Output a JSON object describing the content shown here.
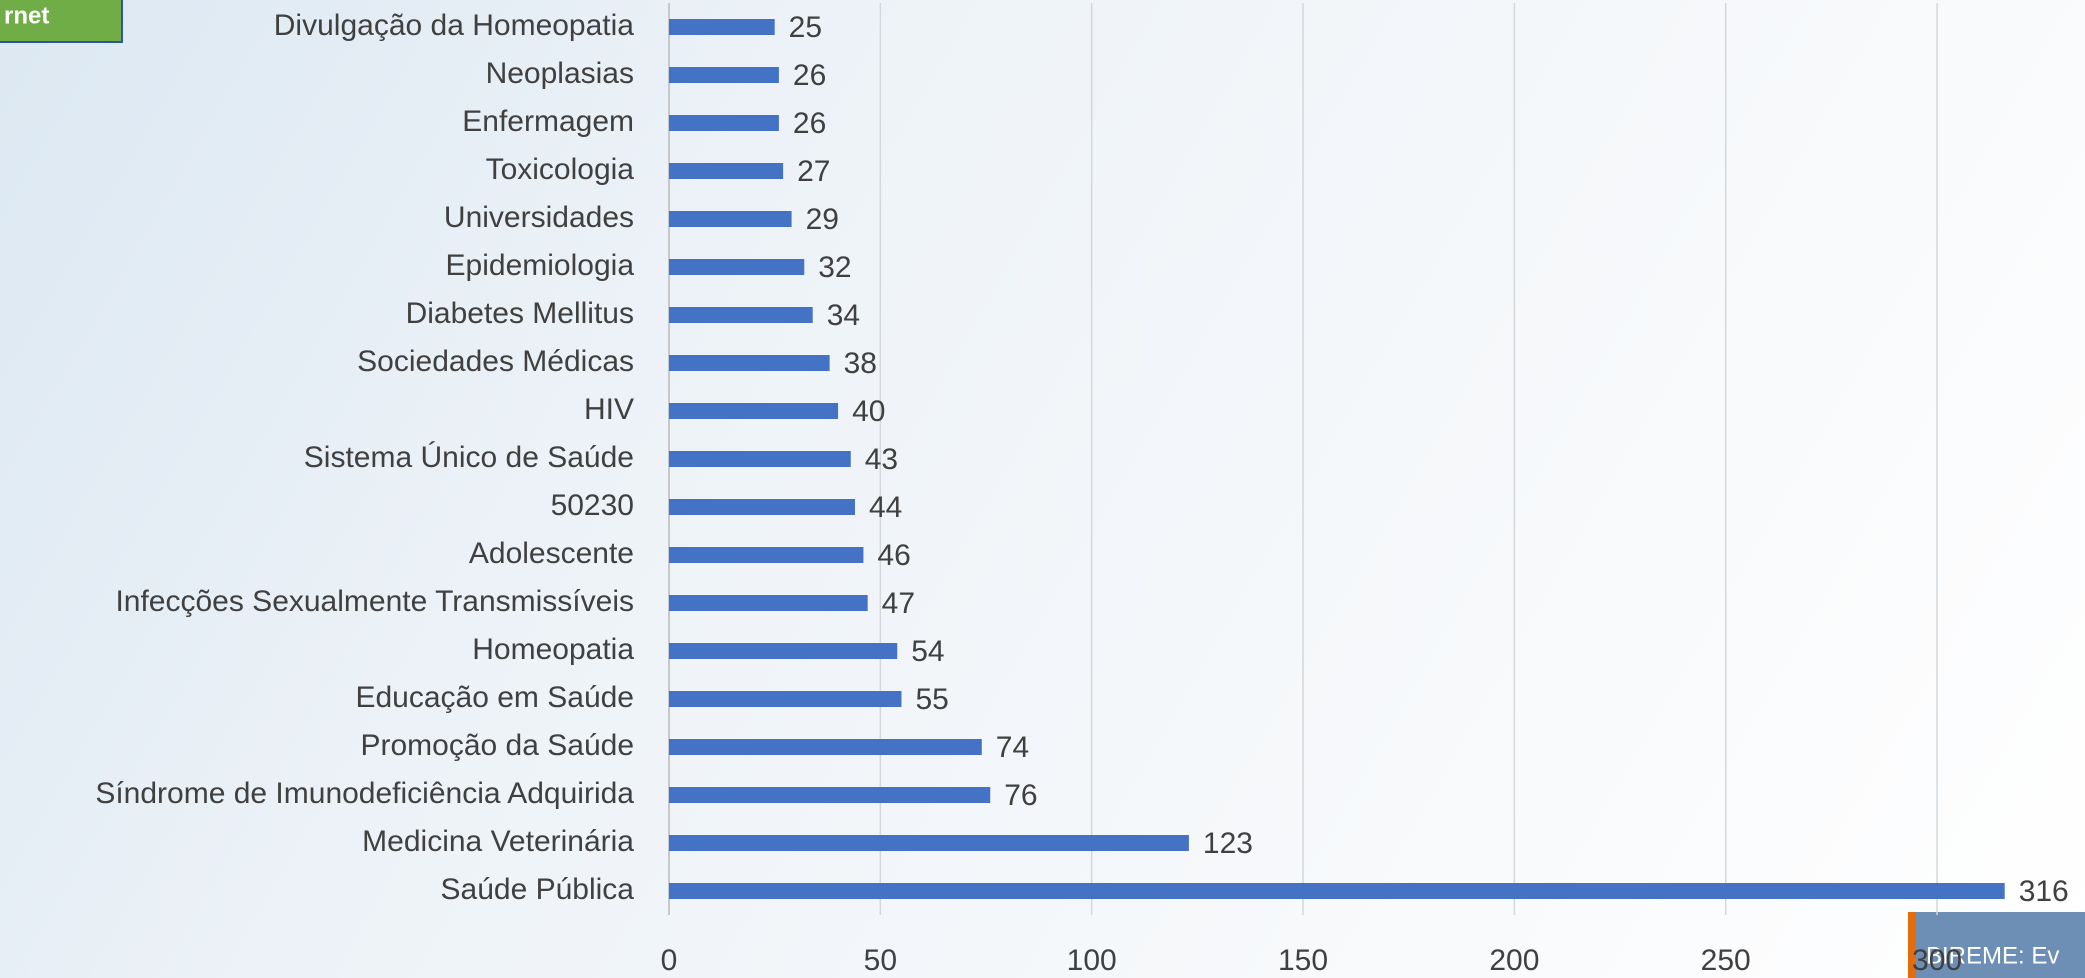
{
  "chart_data": {
    "type": "bar",
    "orientation": "horizontal",
    "categories": [
      "Divulgação da Homeopatia",
      "Neoplasias",
      "Enfermagem",
      "Toxicologia",
      "Universidades",
      "Epidemiologia",
      "Diabetes Mellitus",
      "Sociedades Médicas",
      "HIV",
      "Sistema Único de Saúde",
      "50230",
      "Adolescente",
      "Infecções Sexualmente Transmissíveis",
      "Homeopatia",
      "Educação em Saúde",
      "Promoção da Saúde",
      "Síndrome de Imunodeficiência Adquirida",
      "Medicina Veterinária",
      "Saúde Pública"
    ],
    "values": [
      25,
      26,
      26,
      27,
      29,
      32,
      34,
      38,
      40,
      43,
      44,
      46,
      47,
      54,
      55,
      74,
      76,
      123,
      316
    ],
    "color": "#4472c4",
    "xlim": [
      0,
      335
    ],
    "xticks": [
      0,
      50,
      100,
      150,
      200,
      250,
      300
    ],
    "grid": true,
    "annotations": [
      "rnet",
      "BIREME: Ev"
    ]
  }
}
